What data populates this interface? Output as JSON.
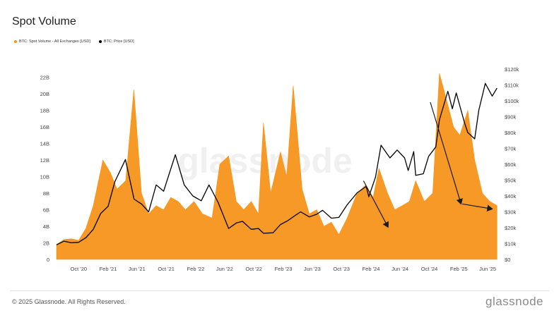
{
  "header": {
    "title": "Spot Volume"
  },
  "legend": {
    "volume_label": "BTC: Spot Volume - All Exchanges [USD]",
    "price_label": "BTC: Price [USD]"
  },
  "footer": {
    "copyright": "© 2025 Glassnode. All Rights Reserved.",
    "logo": "glassnode"
  },
  "watermark": "glassnode",
  "colors": {
    "volume": "#f7931a",
    "price": "#000000",
    "arrows": "#1a1a1a"
  },
  "chart_data": {
    "type": "area",
    "title": "Spot Volume",
    "x_ticks": [
      "Oct '20",
      "Feb '21",
      "Jun '21",
      "Oct '21",
      "Feb '22",
      "Jun '22",
      "Oct '22",
      "Feb '23",
      "Jun '23",
      "Oct '23",
      "Feb '24",
      "Jun '24",
      "Oct '24",
      "Feb '25",
      "Jun '25"
    ],
    "y_left_ticks": [
      "0",
      "2B",
      "4B",
      "6B",
      "8B",
      "10B",
      "12B",
      "14B",
      "16B",
      "18B",
      "20B",
      "22B"
    ],
    "y_right_ticks": [
      "$0",
      "$10k",
      "$20k",
      "$30k",
      "$40k",
      "$50k",
      "$60k",
      "$70k",
      "$80k",
      "$90k",
      "$100k",
      "$110k",
      "$120k"
    ],
    "y_left_range": [
      0,
      23000000000
    ],
    "y_right_range": [
      0,
      120000
    ],
    "x_range": [
      "2020-07-01",
      "2025-07-15"
    ],
    "series": [
      {
        "name": "BTC: Spot Volume - All Exchanges [USD]",
        "axis": "left",
        "type": "area",
        "points": [
          [
            "2020-07-01",
            1800000000.0
          ],
          [
            "2020-08-01",
            2400000000.0
          ],
          [
            "2020-09-01",
            2500000000.0
          ],
          [
            "2020-10-01",
            2300000000.0
          ],
          [
            "2020-11-01",
            3800000000.0
          ],
          [
            "2020-12-01",
            6500000000.0
          ],
          [
            "2021-01-10",
            12000000000.0
          ],
          [
            "2021-02-10",
            10500000000.0
          ],
          [
            "2021-03-10",
            8500000000.0
          ],
          [
            "2021-04-15",
            9500000000.0
          ],
          [
            "2021-05-19",
            20500000000.0
          ],
          [
            "2021-06-20",
            8000000000.0
          ],
          [
            "2021-07-20",
            5500000000.0
          ],
          [
            "2021-08-20",
            6500000000.0
          ],
          [
            "2021-09-20",
            6000000000.0
          ],
          [
            "2021-10-20",
            7500000000.0
          ],
          [
            "2021-11-20",
            7000000000.0
          ],
          [
            "2021-12-20",
            6000000000.0
          ],
          [
            "2022-01-25",
            7000000000.0
          ],
          [
            "2022-03-01",
            5500000000.0
          ],
          [
            "2022-04-10",
            5000000000.0
          ],
          [
            "2022-05-12",
            11500000000.0
          ],
          [
            "2022-06-18",
            12500000000.0
          ],
          [
            "2022-07-20",
            7000000000.0
          ],
          [
            "2022-08-20",
            6000000000.0
          ],
          [
            "2022-09-20",
            7000000000.0
          ],
          [
            "2022-10-20",
            5500000000.0
          ],
          [
            "2022-11-10",
            16500000000.0
          ],
          [
            "2022-12-10",
            8000000000.0
          ],
          [
            "2023-01-20",
            13000000000.0
          ],
          [
            "2023-02-15",
            10000000000.0
          ],
          [
            "2023-03-14",
            21000000000.0
          ],
          [
            "2023-04-20",
            8500000000.0
          ],
          [
            "2023-05-20",
            5500000000.0
          ],
          [
            "2023-06-20",
            6000000000.0
          ],
          [
            "2023-07-20",
            4000000000.0
          ],
          [
            "2023-08-20",
            4500000000.0
          ],
          [
            "2023-09-20",
            3000000000.0
          ],
          [
            "2023-10-25",
            5000000000.0
          ],
          [
            "2023-12-05",
            8000000000.0
          ],
          [
            "2024-01-10",
            9000000000.0
          ],
          [
            "2024-02-10",
            7500000000.0
          ],
          [
            "2024-03-05",
            11000000000.0
          ],
          [
            "2024-04-10",
            8000000000.0
          ],
          [
            "2024-05-10",
            6000000000.0
          ],
          [
            "2024-06-10",
            6500000000.0
          ],
          [
            "2024-07-10",
            7000000000.0
          ],
          [
            "2024-08-05",
            9500000000.0
          ],
          [
            "2024-09-10",
            7000000000.0
          ],
          [
            "2024-10-15",
            8000000000.0
          ],
          [
            "2024-11-12",
            22500000000.0
          ],
          [
            "2024-12-05",
            20000000000.0
          ],
          [
            "2025-01-10",
            16000000000.0
          ],
          [
            "2025-02-05",
            15000000000.0
          ],
          [
            "2025-03-10",
            18000000000.0
          ],
          [
            "2025-04-08",
            12000000000.0
          ],
          [
            "2025-05-10",
            8000000000.0
          ],
          [
            "2025-06-10",
            7000000000.0
          ],
          [
            "2025-07-10",
            6500000000.0
          ]
        ]
      },
      {
        "name": "BTC: Price [USD]",
        "axis": "right",
        "type": "line",
        "points": [
          [
            "2020-07-01",
            9200
          ],
          [
            "2020-08-01",
            11500
          ],
          [
            "2020-09-01",
            10500
          ],
          [
            "2020-10-01",
            10800
          ],
          [
            "2020-11-01",
            13800
          ],
          [
            "2020-12-01",
            19000
          ],
          [
            "2021-01-01",
            29000
          ],
          [
            "2021-02-01",
            33500
          ],
          [
            "2021-03-01",
            49000
          ],
          [
            "2021-04-14",
            63000
          ],
          [
            "2021-05-20",
            38000
          ],
          [
            "2021-06-20",
            35000
          ],
          [
            "2021-07-20",
            30000
          ],
          [
            "2021-08-20",
            47000
          ],
          [
            "2021-09-20",
            43000
          ],
          [
            "2021-11-08",
            66000
          ],
          [
            "2021-12-15",
            47000
          ],
          [
            "2022-01-20",
            40000
          ],
          [
            "2022-02-24",
            37000
          ],
          [
            "2022-03-28",
            47000
          ],
          [
            "2022-05-05",
            36000
          ],
          [
            "2022-06-18",
            19500
          ],
          [
            "2022-07-20",
            23000
          ],
          [
            "2022-08-15",
            24000
          ],
          [
            "2022-09-20",
            19000
          ],
          [
            "2022-10-20",
            19500
          ],
          [
            "2022-11-10",
            16500
          ],
          [
            "2022-12-20",
            16800
          ],
          [
            "2023-01-20",
            22000
          ],
          [
            "2023-02-20",
            24500
          ],
          [
            "2023-03-20",
            27500
          ],
          [
            "2023-04-14",
            30000
          ],
          [
            "2023-05-20",
            26800
          ],
          [
            "2023-06-20",
            28500
          ],
          [
            "2023-07-14",
            31000
          ],
          [
            "2023-08-20",
            26000
          ],
          [
            "2023-09-20",
            26500
          ],
          [
            "2023-10-25",
            34500
          ],
          [
            "2023-12-05",
            42000
          ],
          [
            "2024-01-12",
            46000
          ],
          [
            "2024-01-23",
            39500
          ],
          [
            "2024-02-20",
            52000
          ],
          [
            "2024-03-14",
            72000
          ],
          [
            "2024-04-20",
            64000
          ],
          [
            "2024-05-20",
            69000
          ],
          [
            "2024-06-20",
            64000
          ],
          [
            "2024-07-05",
            56000
          ],
          [
            "2024-07-28",
            68000
          ],
          [
            "2024-08-05",
            53000
          ],
          [
            "2024-09-06",
            54000
          ],
          [
            "2024-09-28",
            65000
          ],
          [
            "2024-10-28",
            71000
          ],
          [
            "2024-11-12",
            88000
          ],
          [
            "2024-12-17",
            106000
          ],
          [
            "2025-01-05",
            95000
          ],
          [
            "2025-01-21",
            105000
          ],
          [
            "2025-02-25",
            86000
          ],
          [
            "2025-03-10",
            80000
          ],
          [
            "2025-04-08",
            76000
          ],
          [
            "2025-04-25",
            94000
          ],
          [
            "2025-05-22",
            111000
          ],
          [
            "2025-06-20",
            103000
          ],
          [
            "2025-07-10",
            108000
          ]
        ]
      }
    ],
    "annotations": [
      {
        "type": "arrow",
        "from": [
          "2024-01-01",
          9500000000.0
        ],
        "to": [
          "2024-04-12",
          3900000000.0
        ]
      },
      {
        "type": "arrow",
        "from": [
          "2024-10-05",
          19000000000.0
        ],
        "to": [
          "2025-02-10",
          6700000000.0
        ]
      },
      {
        "type": "arrow",
        "from": [
          "2025-02-15",
          6700000000.0
        ],
        "to": [
          "2025-06-20",
          6100000000.0
        ]
      }
    ],
    "grid": false,
    "legend_position": "top-left"
  }
}
